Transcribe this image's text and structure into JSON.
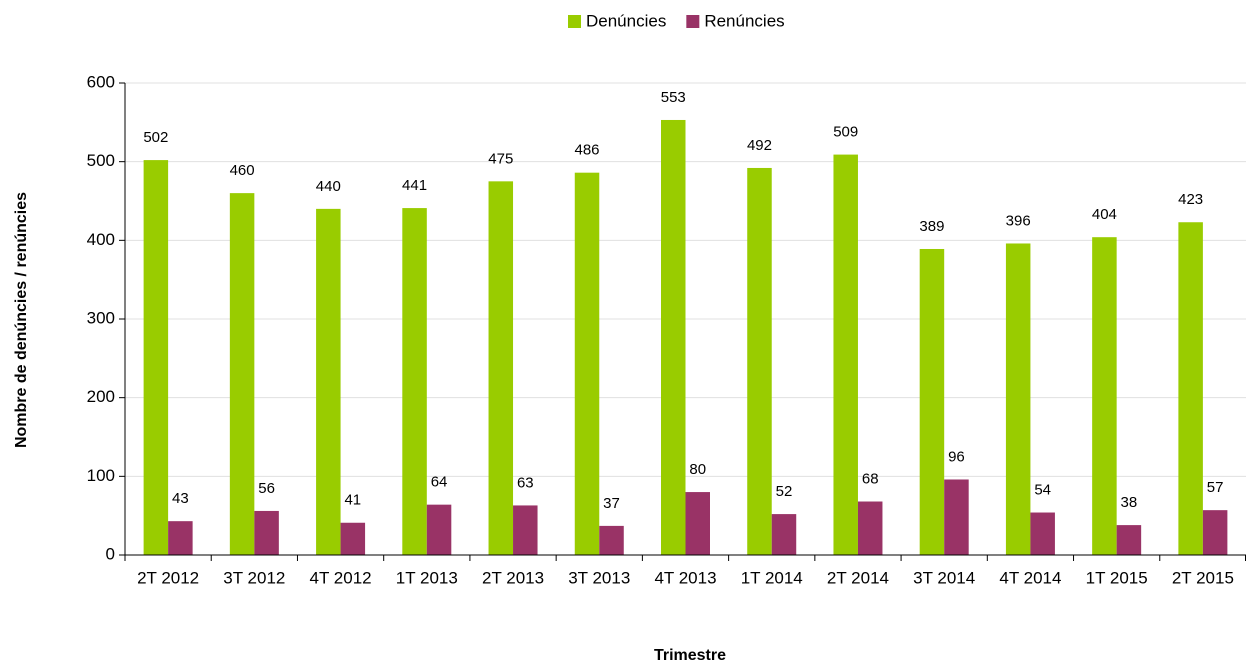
{
  "chart_data": {
    "type": "bar",
    "x_label": "Trimestre",
    "y_label": "Nombre de denúncies / renúncies",
    "categories": [
      "2T 2012",
      "3T 2012",
      "4T 2012",
      "1T 2013",
      "2T 2013",
      "3T 2013",
      "4T 2013",
      "1T 2014",
      "2T 2014",
      "3T 2014",
      "4T 2014",
      "1T 2015",
      "2T 2015"
    ],
    "series": [
      {
        "name": "Denúncies",
        "color": "#99cc00",
        "values": [
          502,
          460,
          440,
          441,
          475,
          486,
          553,
          492,
          509,
          389,
          396,
          404,
          423
        ]
      },
      {
        "name": "Renúncies",
        "color": "#993366",
        "values": [
          43,
          56,
          41,
          64,
          63,
          37,
          80,
          52,
          68,
          96,
          54,
          38,
          57
        ]
      }
    ],
    "ylim": [
      0,
      600
    ],
    "yticks": [
      0,
      100,
      200,
      300,
      400,
      500,
      600
    ],
    "grid": true,
    "legend": "top"
  }
}
